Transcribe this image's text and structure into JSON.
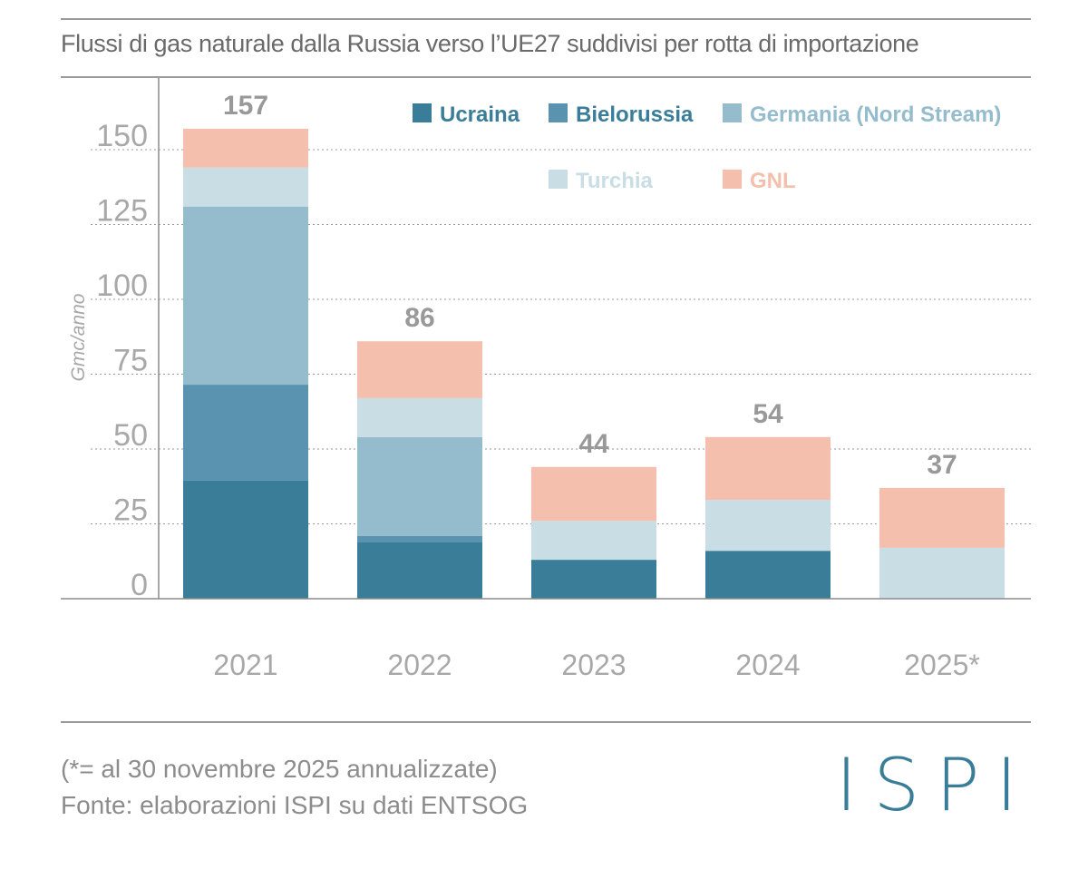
{
  "header": {
    "title": "Flussi di gas naturale dalla Russia verso l’UE27 suddivisi per rotta di importazione"
  },
  "footer": {
    "note": "(*= al 30 novembre 2025 annualizzate)",
    "source": "Fonte: elaborazioni ISPI su dati ENTSOG",
    "logo_text": "ISPI"
  },
  "colors": {
    "ucraina": "#3a7d99",
    "bielorussia": "#5993b0",
    "germania": "#94bccd",
    "turchia": "#c9dde5",
    "gnl": "#f4bfac",
    "total_label": "#999999",
    "axis_text": "#a8a8a8",
    "legend_text_dark": "#3a7d99"
  },
  "chart_data": {
    "type": "bar",
    "stacked": true,
    "categories": [
      "2021",
      "2022",
      "2023",
      "2024",
      "2025*"
    ],
    "series": [
      {
        "name": "Ucraina",
        "values": [
          39.5,
          19,
          13,
          16,
          0
        ]
      },
      {
        "name": "Bielorussia",
        "values": [
          32,
          2,
          0,
          0,
          0
        ]
      },
      {
        "name": "Germania (Nord Stream)",
        "values": [
          59.5,
          33,
          0,
          0,
          0
        ]
      },
      {
        "name": "Turchia",
        "values": [
          13,
          13,
          13,
          17,
          17
        ]
      },
      {
        "name": "GNL",
        "values": [
          13,
          19,
          18,
          21,
          20
        ]
      }
    ],
    "totals": [
      157,
      86,
      44,
      54,
      37
    ],
    "title": "Flussi di gas naturale dalla Russia verso l’UE27 suddivisi per rotta di importazione",
    "xlabel": "",
    "ylabel": "Gmc/anno",
    "yticks": [
      0,
      25,
      50,
      75,
      100,
      125,
      150
    ],
    "ylim": [
      0,
      165
    ],
    "grid": true,
    "legend_position": "top-right"
  }
}
